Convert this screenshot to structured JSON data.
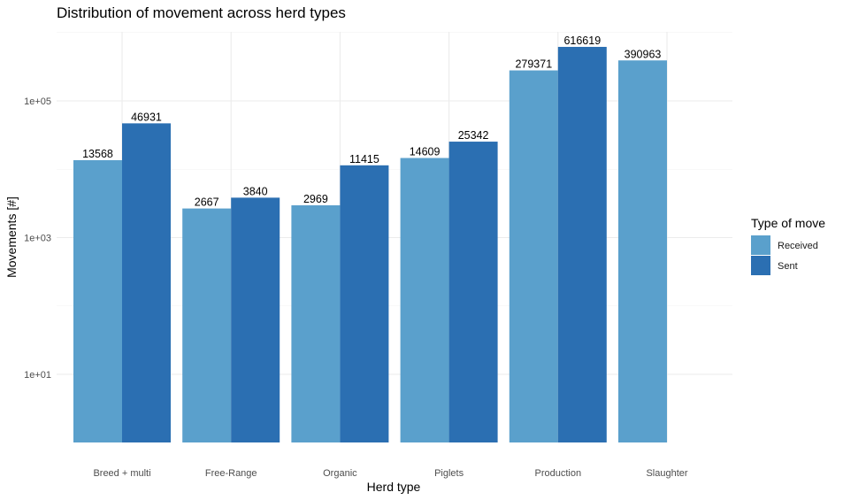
{
  "chart_data": {
    "type": "bar",
    "title": "Distribution of movement across herd types",
    "xlabel": "Herd type",
    "ylabel": "Movements [#]",
    "scale": "log10",
    "ylim": [
      1,
      1000000
    ],
    "y_ticks": [
      {
        "value": 10,
        "label": "1e+01"
      },
      {
        "value": 1000,
        "label": "1e+03"
      },
      {
        "value": 100000,
        "label": "1e+05"
      }
    ],
    "categories": [
      "Breed + multi",
      "Free-Range",
      "Organic",
      "Piglets",
      "Production",
      "Slaughter"
    ],
    "series": [
      {
        "name": "Received",
        "color": "#5aa0cc",
        "values": [
          13568,
          2667,
          2969,
          14609,
          279371,
          390963
        ]
      },
      {
        "name": "Sent",
        "color": "#2b6fb2",
        "values": [
          46931,
          3840,
          11415,
          25342,
          616619,
          null
        ]
      }
    ],
    "legend": {
      "title": "Type of move",
      "position": "right"
    },
    "grid": true
  }
}
